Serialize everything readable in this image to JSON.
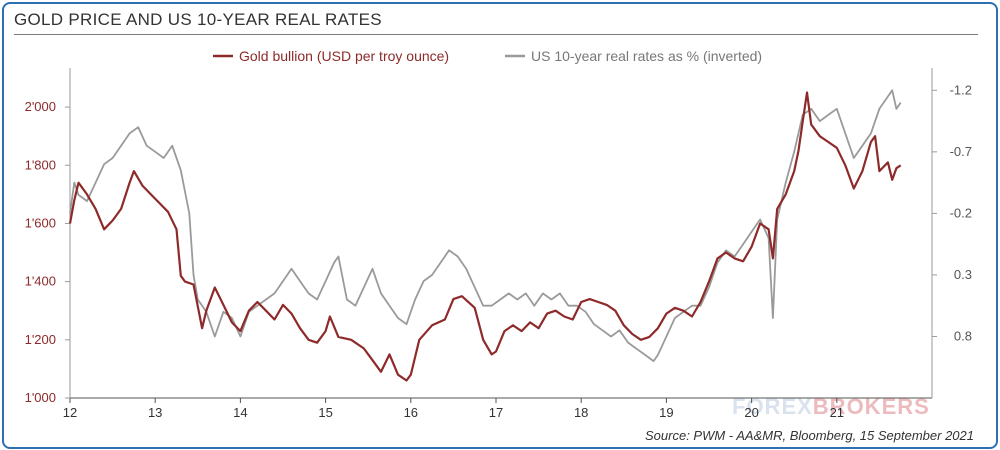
{
  "header": {
    "title": "GOLD PRICE AND US 10-YEAR REAL RATES"
  },
  "footer": {
    "source": "Source: PWM - AA&MR, Bloomberg, 15 September 2021"
  },
  "watermark": {
    "text_a": "FOREX",
    "text_b": "BROKERS"
  },
  "chart_data": {
    "type": "line",
    "x_range": [
      2012,
      2022
    ],
    "x_ticks": [
      "12",
      "13",
      "14",
      "15",
      "16",
      "17",
      "18",
      "19",
      "20",
      "21"
    ],
    "left_axis": {
      "range": [
        1000,
        2100
      ],
      "ticks": [
        "2'000",
        "1'800",
        "1'600",
        "1'400",
        "1'200",
        "1'000"
      ],
      "tick_values": [
        2000,
        1800,
        1600,
        1400,
        1200,
        1000
      ],
      "color": "#8e2a2a"
    },
    "right_axis": {
      "inverted": true,
      "range": [
        1.3,
        -1.3
      ],
      "ticks": [
        "-1.2",
        "-0.7",
        "-0.2",
        "0.3",
        "0.8"
      ],
      "tick_values": [
        -1.2,
        -0.7,
        -0.2,
        0.3,
        0.8
      ],
      "color": "#555555"
    },
    "legend_position": "top-center",
    "series": [
      {
        "name": "Gold bullion (USD per troy ounce)",
        "axis": "left",
        "color": "#8e2a2a",
        "points": [
          [
            2012.0,
            1600
          ],
          [
            2012.05,
            1680
          ],
          [
            2012.1,
            1740
          ],
          [
            2012.2,
            1700
          ],
          [
            2012.3,
            1650
          ],
          [
            2012.4,
            1580
          ],
          [
            2012.5,
            1610
          ],
          [
            2012.6,
            1650
          ],
          [
            2012.7,
            1740
          ],
          [
            2012.75,
            1780
          ],
          [
            2012.85,
            1730
          ],
          [
            2012.95,
            1700
          ],
          [
            2013.05,
            1670
          ],
          [
            2013.15,
            1640
          ],
          [
            2013.25,
            1580
          ],
          [
            2013.3,
            1420
          ],
          [
            2013.35,
            1400
          ],
          [
            2013.45,
            1390
          ],
          [
            2013.55,
            1240
          ],
          [
            2013.6,
            1300
          ],
          [
            2013.7,
            1380
          ],
          [
            2013.8,
            1320
          ],
          [
            2013.9,
            1260
          ],
          [
            2014.0,
            1230
          ],
          [
            2014.1,
            1300
          ],
          [
            2014.2,
            1330
          ],
          [
            2014.3,
            1300
          ],
          [
            2014.4,
            1270
          ],
          [
            2014.5,
            1320
          ],
          [
            2014.6,
            1290
          ],
          [
            2014.7,
            1240
          ],
          [
            2014.8,
            1200
          ],
          [
            2014.9,
            1190
          ],
          [
            2015.0,
            1230
          ],
          [
            2015.05,
            1280
          ],
          [
            2015.15,
            1210
          ],
          [
            2015.3,
            1200
          ],
          [
            2015.45,
            1170
          ],
          [
            2015.55,
            1130
          ],
          [
            2015.65,
            1090
          ],
          [
            2015.75,
            1150
          ],
          [
            2015.85,
            1080
          ],
          [
            2015.95,
            1060
          ],
          [
            2016.0,
            1080
          ],
          [
            2016.1,
            1200
          ],
          [
            2016.25,
            1250
          ],
          [
            2016.4,
            1270
          ],
          [
            2016.5,
            1340
          ],
          [
            2016.6,
            1350
          ],
          [
            2016.75,
            1310
          ],
          [
            2016.85,
            1200
          ],
          [
            2016.95,
            1150
          ],
          [
            2017.0,
            1160
          ],
          [
            2017.1,
            1230
          ],
          [
            2017.2,
            1250
          ],
          [
            2017.3,
            1230
          ],
          [
            2017.4,
            1260
          ],
          [
            2017.5,
            1240
          ],
          [
            2017.6,
            1290
          ],
          [
            2017.7,
            1300
          ],
          [
            2017.8,
            1280
          ],
          [
            2017.9,
            1270
          ],
          [
            2018.0,
            1330
          ],
          [
            2018.1,
            1340
          ],
          [
            2018.2,
            1330
          ],
          [
            2018.3,
            1320
          ],
          [
            2018.4,
            1300
          ],
          [
            2018.5,
            1250
          ],
          [
            2018.6,
            1220
          ],
          [
            2018.7,
            1200
          ],
          [
            2018.8,
            1210
          ],
          [
            2018.9,
            1240
          ],
          [
            2019.0,
            1290
          ],
          [
            2019.1,
            1310
          ],
          [
            2019.2,
            1300
          ],
          [
            2019.3,
            1280
          ],
          [
            2019.4,
            1330
          ],
          [
            2019.5,
            1400
          ],
          [
            2019.6,
            1480
          ],
          [
            2019.7,
            1500
          ],
          [
            2019.8,
            1480
          ],
          [
            2019.9,
            1470
          ],
          [
            2020.0,
            1520
          ],
          [
            2020.1,
            1600
          ],
          [
            2020.2,
            1580
          ],
          [
            2020.25,
            1480
          ],
          [
            2020.3,
            1650
          ],
          [
            2020.4,
            1700
          ],
          [
            2020.5,
            1780
          ],
          [
            2020.55,
            1850
          ],
          [
            2020.6,
            1950
          ],
          [
            2020.65,
            2050
          ],
          [
            2020.7,
            1940
          ],
          [
            2020.8,
            1900
          ],
          [
            2020.9,
            1880
          ],
          [
            2021.0,
            1860
          ],
          [
            2021.1,
            1800
          ],
          [
            2021.2,
            1720
          ],
          [
            2021.25,
            1750
          ],
          [
            2021.3,
            1780
          ],
          [
            2021.4,
            1880
          ],
          [
            2021.45,
            1900
          ],
          [
            2021.5,
            1780
          ],
          [
            2021.6,
            1810
          ],
          [
            2021.65,
            1750
          ],
          [
            2021.7,
            1790
          ],
          [
            2021.75,
            1800
          ]
        ]
      },
      {
        "name": "US 10-year real rates as % (inverted)",
        "axis": "right",
        "color": "#9a9a9a",
        "points": [
          [
            2012.0,
            -0.2
          ],
          [
            2012.05,
            -0.45
          ],
          [
            2012.1,
            -0.35
          ],
          [
            2012.2,
            -0.3
          ],
          [
            2012.3,
            -0.45
          ],
          [
            2012.4,
            -0.6
          ],
          [
            2012.5,
            -0.65
          ],
          [
            2012.6,
            -0.75
          ],
          [
            2012.7,
            -0.85
          ],
          [
            2012.8,
            -0.9
          ],
          [
            2012.9,
            -0.75
          ],
          [
            2013.0,
            -0.7
          ],
          [
            2013.1,
            -0.65
          ],
          [
            2013.2,
            -0.75
          ],
          [
            2013.3,
            -0.55
          ],
          [
            2013.4,
            -0.2
          ],
          [
            2013.45,
            0.3
          ],
          [
            2013.5,
            0.5
          ],
          [
            2013.6,
            0.6
          ],
          [
            2013.7,
            0.8
          ],
          [
            2013.8,
            0.6
          ],
          [
            2013.9,
            0.65
          ],
          [
            2014.0,
            0.8
          ],
          [
            2014.1,
            0.6
          ],
          [
            2014.2,
            0.55
          ],
          [
            2014.3,
            0.5
          ],
          [
            2014.4,
            0.45
          ],
          [
            2014.5,
            0.35
          ],
          [
            2014.6,
            0.25
          ],
          [
            2014.7,
            0.35
          ],
          [
            2014.8,
            0.45
          ],
          [
            2014.9,
            0.5
          ],
          [
            2015.0,
            0.35
          ],
          [
            2015.1,
            0.2
          ],
          [
            2015.15,
            0.15
          ],
          [
            2015.25,
            0.5
          ],
          [
            2015.35,
            0.55
          ],
          [
            2015.45,
            0.4
          ],
          [
            2015.55,
            0.25
          ],
          [
            2015.65,
            0.45
          ],
          [
            2015.75,
            0.55
          ],
          [
            2015.85,
            0.65
          ],
          [
            2015.95,
            0.7
          ],
          [
            2016.05,
            0.5
          ],
          [
            2016.15,
            0.35
          ],
          [
            2016.25,
            0.3
          ],
          [
            2016.35,
            0.2
          ],
          [
            2016.45,
            0.1
          ],
          [
            2016.55,
            0.15
          ],
          [
            2016.65,
            0.25
          ],
          [
            2016.75,
            0.4
          ],
          [
            2016.85,
            0.55
          ],
          [
            2016.95,
            0.55
          ],
          [
            2017.05,
            0.5
          ],
          [
            2017.15,
            0.45
          ],
          [
            2017.25,
            0.5
          ],
          [
            2017.35,
            0.45
          ],
          [
            2017.45,
            0.55
          ],
          [
            2017.55,
            0.45
          ],
          [
            2017.65,
            0.5
          ],
          [
            2017.75,
            0.45
          ],
          [
            2017.85,
            0.55
          ],
          [
            2017.95,
            0.55
          ],
          [
            2018.05,
            0.6
          ],
          [
            2018.15,
            0.7
          ],
          [
            2018.25,
            0.75
          ],
          [
            2018.35,
            0.8
          ],
          [
            2018.45,
            0.75
          ],
          [
            2018.55,
            0.85
          ],
          [
            2018.65,
            0.9
          ],
          [
            2018.75,
            0.95
          ],
          [
            2018.85,
            1.0
          ],
          [
            2018.9,
            0.95
          ],
          [
            2019.0,
            0.8
          ],
          [
            2019.1,
            0.65
          ],
          [
            2019.2,
            0.6
          ],
          [
            2019.3,
            0.55
          ],
          [
            2019.4,
            0.55
          ],
          [
            2019.5,
            0.4
          ],
          [
            2019.6,
            0.2
          ],
          [
            2019.7,
            0.1
          ],
          [
            2019.8,
            0.15
          ],
          [
            2019.9,
            0.05
          ],
          [
            2020.0,
            -0.05
          ],
          [
            2020.1,
            -0.15
          ],
          [
            2020.2,
            0.0
          ],
          [
            2020.25,
            0.65
          ],
          [
            2020.3,
            -0.15
          ],
          [
            2020.4,
            -0.45
          ],
          [
            2020.5,
            -0.7
          ],
          [
            2020.6,
            -1.0
          ],
          [
            2020.7,
            -1.05
          ],
          [
            2020.8,
            -0.95
          ],
          [
            2020.9,
            -1.0
          ],
          [
            2021.0,
            -1.05
          ],
          [
            2021.1,
            -0.85
          ],
          [
            2021.2,
            -0.65
          ],
          [
            2021.3,
            -0.75
          ],
          [
            2021.4,
            -0.85
          ],
          [
            2021.5,
            -1.05
          ],
          [
            2021.6,
            -1.15
          ],
          [
            2021.65,
            -1.2
          ],
          [
            2021.7,
            -1.05
          ],
          [
            2021.75,
            -1.1
          ]
        ]
      }
    ]
  }
}
